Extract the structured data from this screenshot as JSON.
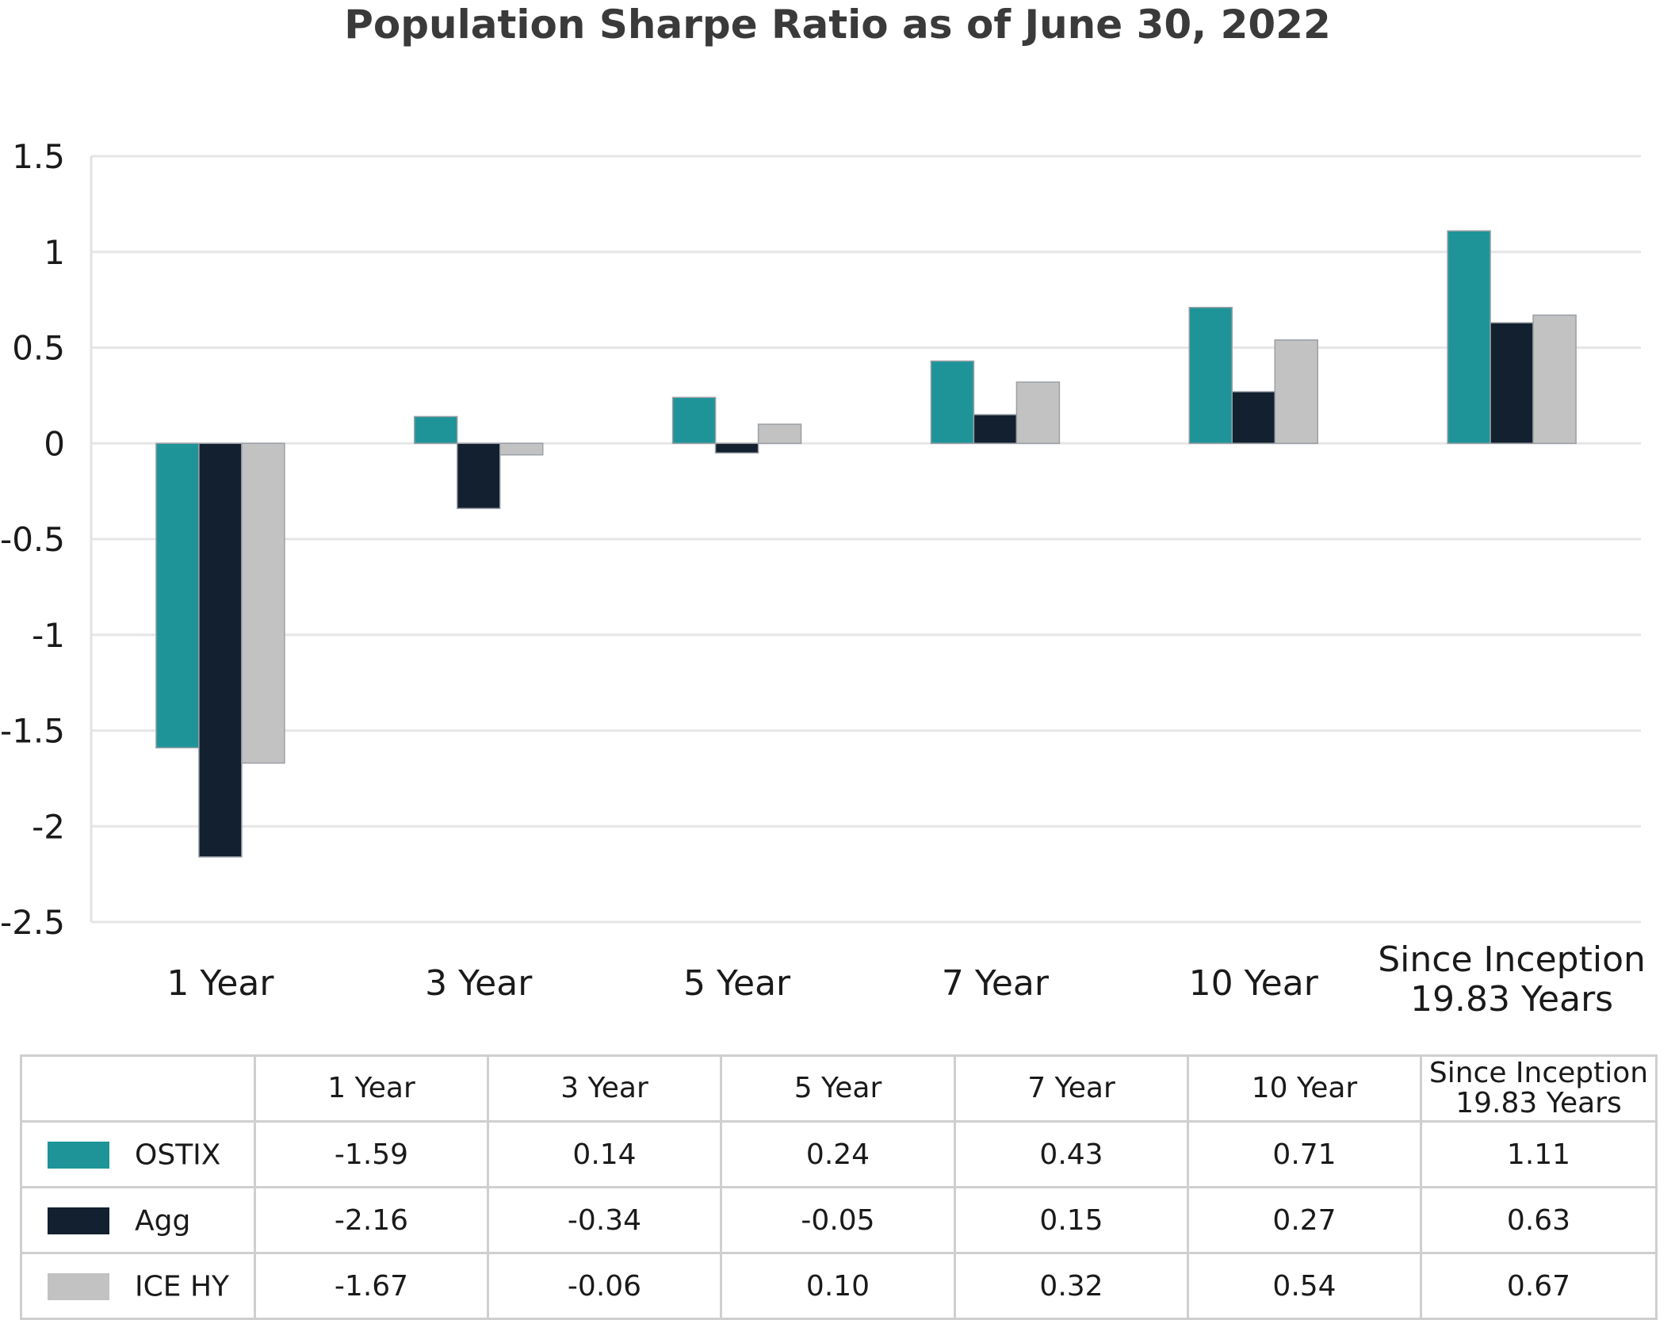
{
  "chart_data": {
    "type": "bar",
    "title": "Population Sharpe Ratio as of June 30, 2022",
    "categories": [
      "1 Year",
      "3 Year",
      "5 Year",
      "7 Year",
      "10 Year",
      "Since Inception 19.83 Years"
    ],
    "category_lines": [
      [
        "1 Year"
      ],
      [
        "3 Year"
      ],
      [
        "5 Year"
      ],
      [
        "7 Year"
      ],
      [
        "10 Year"
      ],
      [
        "Since Inception",
        "19.83 Years"
      ]
    ],
    "series": [
      {
        "name": "OSTIX",
        "color": "#1e9499",
        "values": [
          -1.59,
          0.14,
          0.24,
          0.43,
          0.71,
          1.11
        ]
      },
      {
        "name": "Agg",
        "color": "#12202f",
        "values": [
          -2.16,
          -0.34,
          -0.05,
          0.15,
          0.27,
          0.63
        ]
      },
      {
        "name": "ICE HY",
        "color": "#c2c2c2",
        "values": [
          -1.67,
          -0.06,
          0.1,
          0.32,
          0.54,
          0.67
        ]
      }
    ],
    "ylim": [
      -2.5,
      1.5
    ],
    "yticks": [
      1.5,
      1,
      0.5,
      0,
      -0.5,
      -1,
      -1.5,
      -2,
      -2.5
    ],
    "ytick_labels": [
      "1.5",
      "1",
      "0.5",
      "0",
      "-0.5",
      "-1",
      "-1.5",
      "-2",
      "-2.5"
    ],
    "xlabel": "",
    "ylabel": "",
    "grid": true,
    "legend": "data table below chart"
  },
  "table": {
    "header": [
      "1 Year",
      "3 Year",
      "5 Year",
      "7 Year",
      "10 Year",
      [
        "Since Inception",
        "19.83 Years"
      ]
    ],
    "rows": [
      {
        "label": "OSTIX",
        "values": [
          "-1.59",
          "0.14",
          "0.24",
          "0.43",
          "0.71",
          "1.11"
        ]
      },
      {
        "label": "Agg",
        "values": [
          "-2.16",
          "-0.34",
          "-0.05",
          "0.15",
          "0.27",
          "0.63"
        ]
      },
      {
        "label": "ICE HY",
        "values": [
          "-1.67",
          "-0.06",
          "0.10",
          "0.32",
          "0.54",
          "0.67"
        ]
      }
    ]
  }
}
